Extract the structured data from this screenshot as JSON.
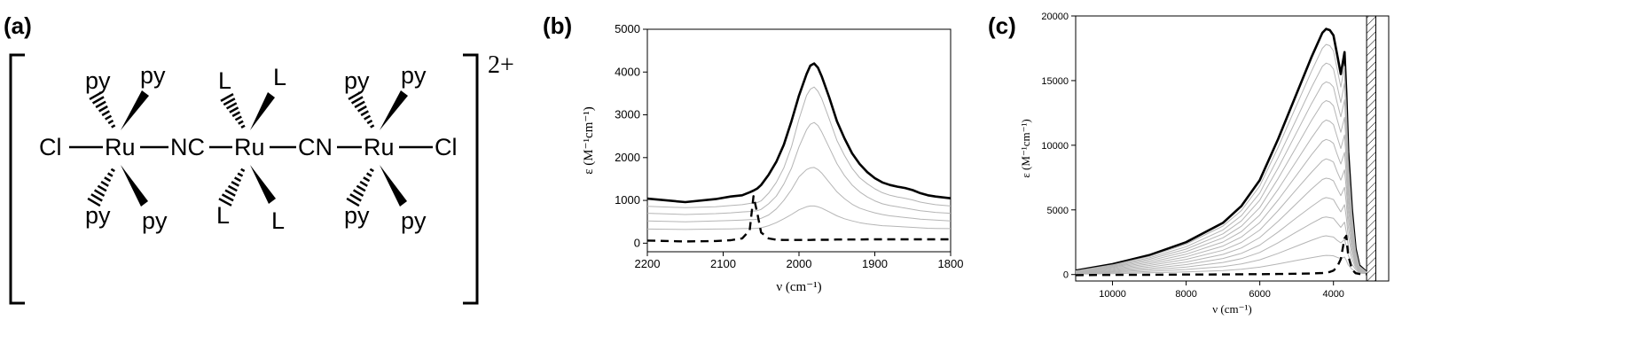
{
  "panels": {
    "a": {
      "label": "(a)",
      "charge": "2+",
      "atoms": {
        "cl_left": "Cl",
        "ru1": "Ru",
        "nc": "NC",
        "ru2": "Ru",
        "cn": "CN",
        "ru3": "Ru",
        "cl_right": "Cl",
        "ru1_top_left": "py",
        "ru1_top_right": "py",
        "ru1_bottom_left": "py",
        "ru1_bottom_right": "py",
        "ru2_top_left": "L",
        "ru2_top_right": "L",
        "ru2_bottom_left": "L",
        "ru2_bottom_right": "L",
        "ru3_top_left": "py",
        "ru3_top_right": "py",
        "ru3_bottom_left": "py",
        "ru3_bottom_right": "py"
      }
    },
    "b": {
      "label": "(b)"
    },
    "c": {
      "label": "(c)"
    }
  },
  "chart_data": [
    {
      "panel": "b",
      "type": "line",
      "xlabel": "ν (cm⁻¹)",
      "ylabel": "ε (M⁻¹cm⁻¹)",
      "xlim": [
        2200,
        1800
      ],
      "ylim": [
        -200,
        5000
      ],
      "x_ticks": [
        2200,
        2100,
        2000,
        1900,
        1800
      ],
      "x_tick_labels": [
        "2200",
        "2100",
        "2000",
        "1900",
        "1800"
      ],
      "y_ticks": [
        0,
        1000,
        2000,
        3000,
        4000,
        5000
      ],
      "y_tick_labels": [
        "0",
        "1000",
        "2000",
        "3000",
        "4000",
        "5000"
      ],
      "x": [
        2200,
        2150,
        2110,
        2090,
        2075,
        2065,
        2060,
        2055,
        2050,
        2040,
        2030,
        2020,
        2010,
        2000,
        1990,
        1985,
        1980,
        1975,
        1970,
        1960,
        1950,
        1940,
        1930,
        1920,
        1910,
        1900,
        1890,
        1880,
        1870,
        1860,
        1850,
        1840,
        1830,
        1820,
        1800
      ],
      "series": [
        {
          "style": "bold",
          "values": [
            1040,
            960,
            1030,
            1090,
            1120,
            1190,
            1230,
            1280,
            1360,
            1600,
            1900,
            2300,
            2850,
            3450,
            3950,
            4150,
            4200,
            4100,
            3900,
            3400,
            2850,
            2450,
            2100,
            1850,
            1660,
            1520,
            1420,
            1360,
            1320,
            1290,
            1240,
            1170,
            1120,
            1090,
            1050
          ]
        },
        {
          "style": "thin",
          "values": [
            860,
            830,
            850,
            880,
            900,
            930,
            940,
            950,
            990,
            1170,
            1420,
            1760,
            2250,
            2900,
            3450,
            3600,
            3650,
            3550,
            3380,
            2900,
            2400,
            2050,
            1750,
            1530,
            1390,
            1270,
            1180,
            1120,
            1080,
            1050,
            1010,
            960,
            930,
            900,
            870
          ]
        },
        {
          "style": "thin",
          "values": [
            700,
            670,
            690,
            710,
            730,
            740,
            750,
            760,
            790,
            920,
            1100,
            1380,
            1750,
            2250,
            2650,
            2780,
            2820,
            2750,
            2600,
            2230,
            1860,
            1580,
            1360,
            1200,
            1080,
            990,
            920,
            880,
            850,
            820,
            790,
            760,
            740,
            720,
            700
          ]
        },
        {
          "style": "thin",
          "values": [
            520,
            500,
            520,
            530,
            540,
            550,
            550,
            560,
            580,
            660,
            800,
            1000,
            1250,
            1550,
            1720,
            1760,
            1770,
            1720,
            1640,
            1420,
            1200,
            1040,
            910,
            820,
            760,
            710,
            670,
            640,
            620,
            600,
            580,
            560,
            550,
            540,
            520
          ]
        },
        {
          "style": "thin",
          "values": [
            330,
            320,
            330,
            335,
            340,
            345,
            345,
            350,
            360,
            410,
            480,
            570,
            670,
            780,
            850,
            870,
            870,
            850,
            820,
            730,
            640,
            570,
            520,
            480,
            450,
            430,
            410,
            400,
            390,
            380,
            370,
            360,
            350,
            345,
            340
          ]
        },
        {
          "style": "dashed",
          "values": [
            60,
            40,
            50,
            70,
            110,
            300,
            1100,
            700,
            250,
            110,
            80,
            75,
            75,
            75,
            75,
            75,
            80,
            80,
            80,
            80,
            85,
            85,
            85,
            85,
            90,
            90,
            90,
            90,
            90,
            90,
            90,
            90,
            90,
            90,
            90
          ]
        }
      ]
    },
    {
      "panel": "c",
      "type": "line",
      "xlabel": "ν (cm⁻¹)",
      "ylabel": "ε (M⁻¹cm⁻¹)",
      "xlim": [
        11000,
        2500
      ],
      "ylim": [
        -500,
        20000
      ],
      "x_ticks": [
        10000,
        8000,
        6000,
        4000
      ],
      "x_tick_labels": [
        "10000",
        "8000",
        "6000",
        "4000"
      ],
      "y_ticks": [
        0,
        5000,
        10000,
        15000,
        20000
      ],
      "y_tick_labels": [
        "0",
        "5000",
        "10000",
        "15000",
        "20000"
      ],
      "hatched_region": [
        3100,
        2850
      ],
      "x": [
        11000,
        10000,
        9000,
        8000,
        7000,
        6500,
        6000,
        5500,
        5000,
        4600,
        4300,
        4200,
        4100,
        4000,
        3900,
        3800,
        3700,
        3650,
        3600,
        3500,
        3400,
        3300,
        3100
      ],
      "series": [
        {
          "style": "bold",
          "values": [
            300,
            800,
            1500,
            2500,
            4000,
            5300,
            7300,
            10500,
            14000,
            16800,
            18700,
            19000,
            18900,
            18500,
            17000,
            15500,
            17200,
            14000,
            9500,
            5000,
            2000,
            700,
            200
          ]
        },
        {
          "style": "thin",
          "values": [
            280,
            750,
            1400,
            2350,
            3750,
            4950,
            6850,
            9850,
            13100,
            15700,
            17500,
            17800,
            17700,
            17300,
            15900,
            14500,
            16100,
            13100,
            8900,
            4700,
            1900,
            650,
            200
          ]
        },
        {
          "style": "thin",
          "values": [
            260,
            690,
            1290,
            2150,
            3450,
            4550,
            6300,
            9050,
            12050,
            14450,
            16100,
            16350,
            16250,
            15900,
            14600,
            13300,
            14800,
            12050,
            8200,
            4300,
            1750,
            600,
            180
          ]
        },
        {
          "style": "thin",
          "values": [
            240,
            630,
            1180,
            1970,
            3150,
            4150,
            5750,
            8250,
            11000,
            13200,
            14700,
            14900,
            14800,
            14500,
            13300,
            12200,
            13500,
            11000,
            7500,
            3950,
            1600,
            550,
            170
          ]
        },
        {
          "style": "thin",
          "values": [
            215,
            570,
            1060,
            1770,
            2840,
            3740,
            5180,
            7430,
            9900,
            11900,
            13250,
            13450,
            13350,
            13050,
            12000,
            11000,
            12150,
            9900,
            6750,
            3550,
            1450,
            500,
            160
          ]
        },
        {
          "style": "thin",
          "values": [
            190,
            510,
            940,
            1570,
            2520,
            3320,
            4600,
            6600,
            8800,
            10550,
            11750,
            11950,
            11850,
            11600,
            10650,
            9750,
            10800,
            8800,
            6000,
            3150,
            1300,
            450,
            150
          ]
        },
        {
          "style": "thin",
          "values": [
            165,
            440,
            820,
            1370,
            2200,
            2900,
            4020,
            5770,
            7700,
            9250,
            10300,
            10450,
            10350,
            10150,
            9300,
            8550,
            9450,
            7700,
            5250,
            2750,
            1150,
            400,
            140
          ]
        },
        {
          "style": "thin",
          "values": [
            140,
            380,
            700,
            1170,
            1880,
            2480,
            3440,
            4950,
            6600,
            7900,
            8800,
            8950,
            8850,
            8700,
            7950,
            7300,
            8100,
            6600,
            4500,
            2350,
            1000,
            350,
            130
          ]
        },
        {
          "style": "thin",
          "values": [
            115,
            310,
            580,
            970,
            1560,
            2060,
            2860,
            4120,
            5500,
            6600,
            7350,
            7450,
            7400,
            7250,
            6650,
            6100,
            6750,
            5500,
            3750,
            1950,
            850,
            300,
            120
          ]
        },
        {
          "style": "thin",
          "values": [
            90,
            250,
            460,
            770,
            1240,
            1640,
            2280,
            3290,
            4400,
            5250,
            5850,
            5950,
            5900,
            5800,
            5300,
            4850,
            5400,
            4400,
            3000,
            1600,
            700,
            250,
            110
          ]
        },
        {
          "style": "thin",
          "values": [
            70,
            190,
            350,
            580,
            930,
            1230,
            1710,
            2460,
            3300,
            3950,
            4400,
            4450,
            4400,
            4350,
            4000,
            3650,
            4050,
            3300,
            2250,
            1200,
            550,
            200,
            100
          ]
        },
        {
          "style": "thin",
          "values": [
            50,
            130,
            240,
            390,
            620,
            820,
            1140,
            1640,
            2200,
            2650,
            2950,
            3000,
            2950,
            2900,
            2650,
            2450,
            2700,
            2200,
            1500,
            800,
            400,
            150,
            90
          ]
        },
        {
          "style": "thin",
          "values": [
            30,
            70,
            130,
            200,
            310,
            410,
            570,
            820,
            1100,
            1300,
            1450,
            1480,
            1470,
            1450,
            1330,
            1220,
            1350,
            1100,
            750,
            420,
            220,
            100,
            80
          ]
        },
        {
          "style": "dashed",
          "values": [
            -50,
            -30,
            -20,
            0,
            10,
            20,
            30,
            40,
            60,
            80,
            120,
            150,
            200,
            300,
            600,
            1200,
            2800,
            3000,
            1500,
            400,
            100,
            50,
            30
          ]
        }
      ]
    }
  ]
}
